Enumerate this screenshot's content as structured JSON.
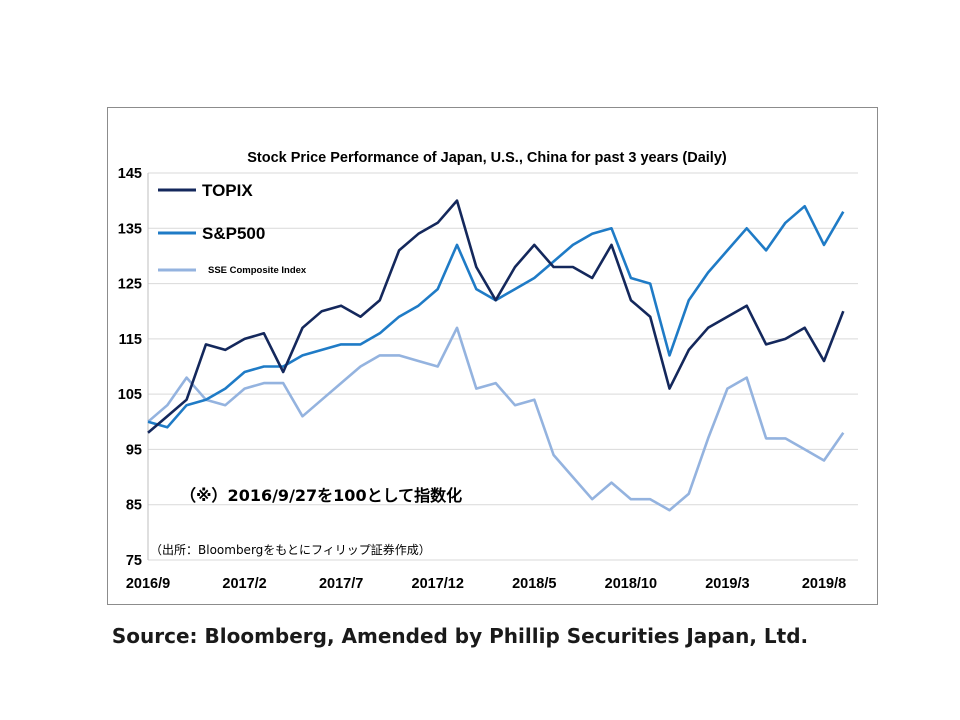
{
  "chart_data": {
    "type": "line",
    "title": "Stock Price Performance of Japan, U.S., China for past 3 years (Daily)",
    "ylim": [
      75,
      145
    ],
    "yticks": [
      "145",
      "135",
      "125",
      "115",
      "105",
      "95",
      "85",
      "75"
    ],
    "xticks": [
      "2016/9",
      "2017/2",
      "2017/7",
      "2017/12",
      "2018/5",
      "2018/10",
      "2019/3",
      "2019/8"
    ],
    "xlim": [
      "2016-09",
      "2019-08"
    ],
    "legend_position": "top-left",
    "grid": "horizontal",
    "annotation": "（※）2016/9/27を100として指数化",
    "source_in_chart": "（出所：Bloombergをもとにフィリップ証券作成）",
    "series": [
      {
        "name": "TOPIX",
        "color": "#14285c",
        "points": [
          [
            "2016-09",
            98
          ],
          [
            "2016-10",
            101
          ],
          [
            "2016-11",
            104
          ],
          [
            "2016-12",
            114
          ],
          [
            "2017-01",
            113
          ],
          [
            "2017-02",
            115
          ],
          [
            "2017-03",
            116
          ],
          [
            "2017-04",
            109
          ],
          [
            "2017-05",
            117
          ],
          [
            "2017-06",
            120
          ],
          [
            "2017-07",
            121
          ],
          [
            "2017-08",
            119
          ],
          [
            "2017-09",
            122
          ],
          [
            "2017-10",
            131
          ],
          [
            "2017-11",
            134
          ],
          [
            "2017-12",
            136
          ],
          [
            "2018-01",
            140
          ],
          [
            "2018-02",
            128
          ],
          [
            "2018-03",
            122
          ],
          [
            "2018-04",
            128
          ],
          [
            "2018-05",
            132
          ],
          [
            "2018-06",
            128
          ],
          [
            "2018-07",
            128
          ],
          [
            "2018-08",
            126
          ],
          [
            "2018-09",
            132
          ],
          [
            "2018-10",
            122
          ],
          [
            "2018-11",
            119
          ],
          [
            "2018-12",
            106
          ],
          [
            "2019-01",
            113
          ],
          [
            "2019-02",
            117
          ],
          [
            "2019-03",
            119
          ],
          [
            "2019-04",
            121
          ],
          [
            "2019-05",
            114
          ],
          [
            "2019-06",
            115
          ],
          [
            "2019-07",
            117
          ],
          [
            "2019-08",
            111
          ],
          [
            "2019-09",
            120
          ]
        ]
      },
      {
        "name": "S&P500",
        "color": "#1f7bc6",
        "points": [
          [
            "2016-09",
            100
          ],
          [
            "2016-10",
            99
          ],
          [
            "2016-11",
            103
          ],
          [
            "2016-12",
            104
          ],
          [
            "2017-01",
            106
          ],
          [
            "2017-02",
            109
          ],
          [
            "2017-03",
            110
          ],
          [
            "2017-04",
            110
          ],
          [
            "2017-05",
            112
          ],
          [
            "2017-06",
            113
          ],
          [
            "2017-07",
            114
          ],
          [
            "2017-08",
            114
          ],
          [
            "2017-09",
            116
          ],
          [
            "2017-10",
            119
          ],
          [
            "2017-11",
            121
          ],
          [
            "2017-12",
            124
          ],
          [
            "2018-01",
            132
          ],
          [
            "2018-02",
            124
          ],
          [
            "2018-03",
            122
          ],
          [
            "2018-04",
            124
          ],
          [
            "2018-05",
            126
          ],
          [
            "2018-06",
            129
          ],
          [
            "2018-07",
            132
          ],
          [
            "2018-08",
            134
          ],
          [
            "2018-09",
            135
          ],
          [
            "2018-10",
            126
          ],
          [
            "2018-11",
            125
          ],
          [
            "2018-12",
            112
          ],
          [
            "2019-01",
            122
          ],
          [
            "2019-02",
            127
          ],
          [
            "2019-03",
            131
          ],
          [
            "2019-04",
            135
          ],
          [
            "2019-05",
            131
          ],
          [
            "2019-06",
            136
          ],
          [
            "2019-07",
            139
          ],
          [
            "2019-08",
            132
          ],
          [
            "2019-09",
            138
          ]
        ]
      },
      {
        "name": "SSE Composite Index",
        "color": "#94b3df",
        "points": [
          [
            "2016-09",
            100
          ],
          [
            "2016-10",
            103
          ],
          [
            "2016-11",
            108
          ],
          [
            "2016-12",
            104
          ],
          [
            "2017-01",
            103
          ],
          [
            "2017-02",
            106
          ],
          [
            "2017-03",
            107
          ],
          [
            "2017-04",
            107
          ],
          [
            "2017-05",
            101
          ],
          [
            "2017-06",
            104
          ],
          [
            "2017-07",
            107
          ],
          [
            "2017-08",
            110
          ],
          [
            "2017-09",
            112
          ],
          [
            "2017-10",
            112
          ],
          [
            "2017-11",
            111
          ],
          [
            "2017-12",
            110
          ],
          [
            "2018-01",
            117
          ],
          [
            "2018-02",
            106
          ],
          [
            "2018-03",
            107
          ],
          [
            "2018-04",
            103
          ],
          [
            "2018-05",
            104
          ],
          [
            "2018-06",
            94
          ],
          [
            "2018-07",
            90
          ],
          [
            "2018-08",
            86
          ],
          [
            "2018-09",
            89
          ],
          [
            "2018-10",
            86
          ],
          [
            "2018-11",
            86
          ],
          [
            "2018-12",
            84
          ],
          [
            "2019-01",
            87
          ],
          [
            "2019-02",
            97
          ],
          [
            "2019-03",
            106
          ],
          [
            "2019-04",
            108
          ],
          [
            "2019-05",
            97
          ],
          [
            "2019-06",
            97
          ],
          [
            "2019-07",
            95
          ],
          [
            "2019-08",
            93
          ],
          [
            "2019-09",
            98
          ]
        ]
      }
    ]
  },
  "source_note": "Source: Bloomberg, Amended by Phillip Securities Japan, Ltd."
}
